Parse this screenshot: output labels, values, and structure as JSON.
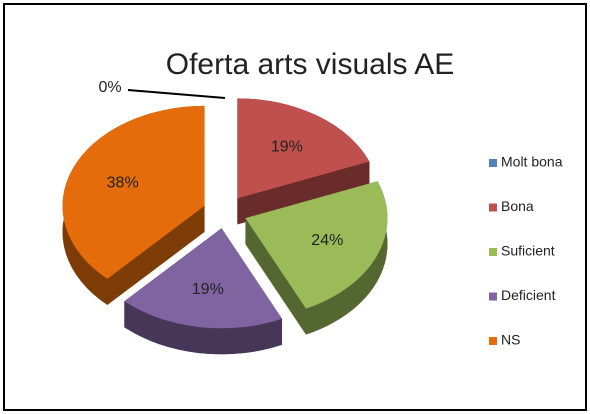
{
  "chart_data": {
    "type": "pie",
    "title": "Oferta arts visuals AE",
    "categories": [
      "Molt bona",
      "Bona",
      "Suficient",
      "Deficient",
      "NS"
    ],
    "values": [
      0,
      19,
      24,
      19,
      38
    ],
    "value_labels": [
      "0%",
      "19%",
      "24%",
      "19%",
      "38%"
    ],
    "colors": [
      "#4f81bd",
      "#c0504d",
      "#9bbb59",
      "#8064a2",
      "#e46c0a"
    ],
    "legend": "right"
  }
}
